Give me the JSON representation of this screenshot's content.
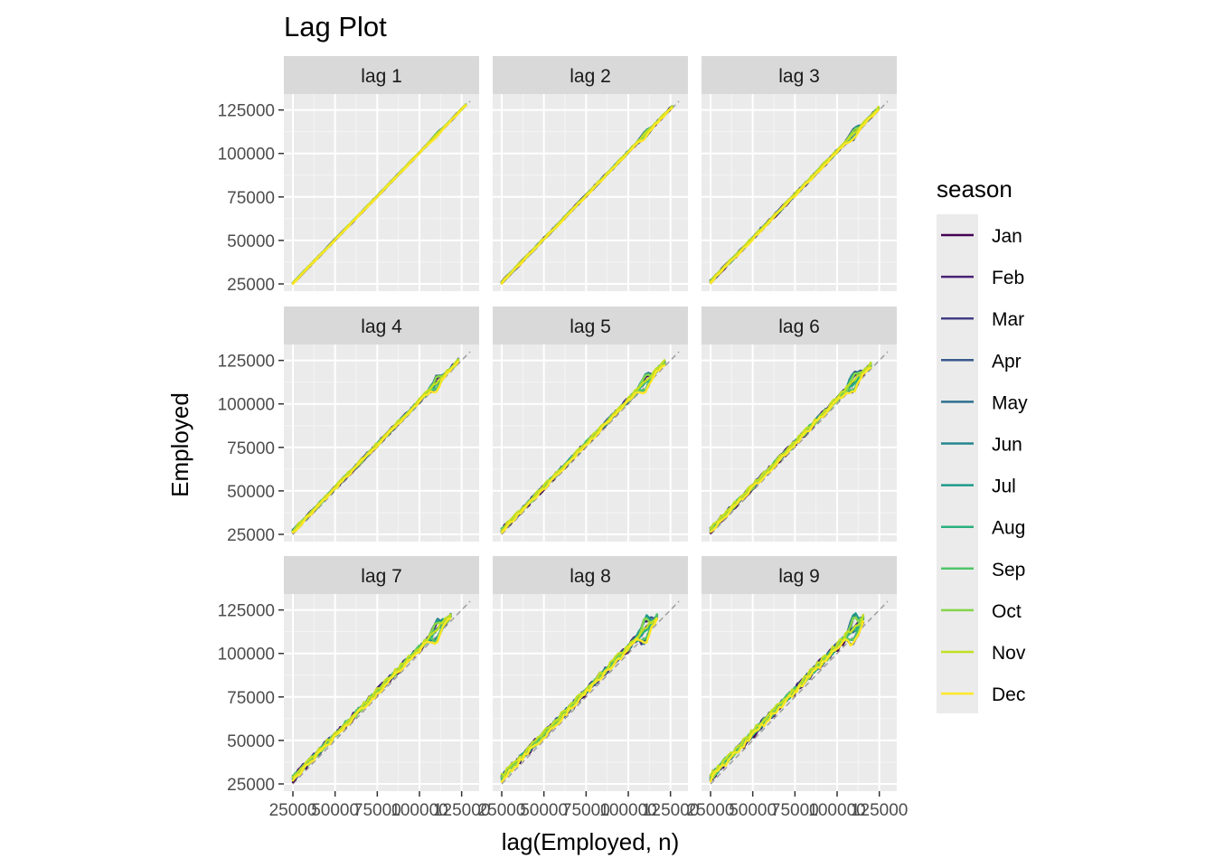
{
  "chart_data": {
    "type": "line",
    "title": "Lag Plot",
    "xlabel": "lag(Employed, n)",
    "ylabel": "Employed",
    "xlim": [
      25000,
      130000
    ],
    "ylim": [
      25000,
      130000
    ],
    "x_ticks": [
      "25000",
      "50000",
      "75000",
      "100000",
      "125000"
    ],
    "y_ticks": [
      "25000",
      "50000",
      "75000",
      "100000",
      "125000"
    ],
    "grid": true,
    "panels": [
      {
        "label": "lag 1",
        "lag": 1
      },
      {
        "label": "lag 2",
        "lag": 2
      },
      {
        "label": "lag 3",
        "lag": 3
      },
      {
        "label": "lag 4",
        "lag": 4
      },
      {
        "label": "lag 5",
        "lag": 5
      },
      {
        "label": "lag 6",
        "lag": 6
      },
      {
        "label": "lag 7",
        "lag": 7
      },
      {
        "label": "lag 8",
        "lag": 8
      },
      {
        "label": "lag 9",
        "lag": 9
      }
    ],
    "reference_line": {
      "slope": 1,
      "color": "#9e9e9e"
    },
    "legend": {
      "title": "season",
      "position": "right",
      "entries": [
        {
          "name": "Jan",
          "color": "#440154"
        },
        {
          "name": "Feb",
          "color": "#482173"
        },
        {
          "name": "Mar",
          "color": "#433E85"
        },
        {
          "name": "Apr",
          "color": "#38598C"
        },
        {
          "name": "May",
          "color": "#2D708E"
        },
        {
          "name": "Jun",
          "color": "#25858E"
        },
        {
          "name": "Jul",
          "color": "#1E9B8A"
        },
        {
          "name": "Aug",
          "color": "#2BB07F"
        },
        {
          "name": "Sep",
          "color": "#51C56A"
        },
        {
          "name": "Oct",
          "color": "#85D54A"
        },
        {
          "name": "Nov",
          "color": "#C2DF23"
        },
        {
          "name": "Dec",
          "color": "#FDE725"
        }
      ]
    },
    "series_path": {
      "start": 25000,
      "end": 129000,
      "note_dip_near": 110000
    }
  }
}
